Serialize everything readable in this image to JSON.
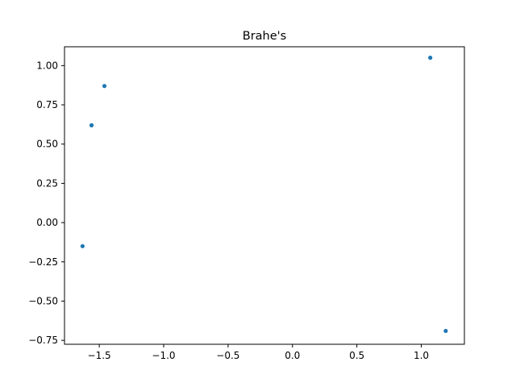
{
  "chart_data": {
    "type": "scatter",
    "title": "Brahe's",
    "xlabel": "",
    "ylabel": "",
    "xlim": [
      -1.77,
      1.335
    ],
    "ylim": [
      -0.775,
      1.12
    ],
    "x_ticks": [
      -1.5,
      -1.0,
      -0.5,
      0.0,
      0.5,
      1.0
    ],
    "x_tick_labels": [
      "−1.5",
      "−1.0",
      "−0.5",
      "0.0",
      "0.5",
      "1.0"
    ],
    "y_ticks": [
      -0.75,
      -0.5,
      -0.25,
      0.0,
      0.25,
      0.5,
      0.75,
      1.0
    ],
    "y_tick_labels": [
      "−0.75",
      "−0.50",
      "−0.25",
      "0.00",
      "0.25",
      "0.50",
      "0.75",
      "1.00"
    ],
    "grid": false,
    "series": [
      {
        "color": "#1f77b4",
        "points": [
          {
            "x": -1.63,
            "y": -0.15
          },
          {
            "x": -1.56,
            "y": 0.62
          },
          {
            "x": -1.46,
            "y": 0.87
          },
          {
            "x": 1.07,
            "y": 1.05
          },
          {
            "x": 1.19,
            "y": -0.69
          }
        ]
      }
    ]
  }
}
